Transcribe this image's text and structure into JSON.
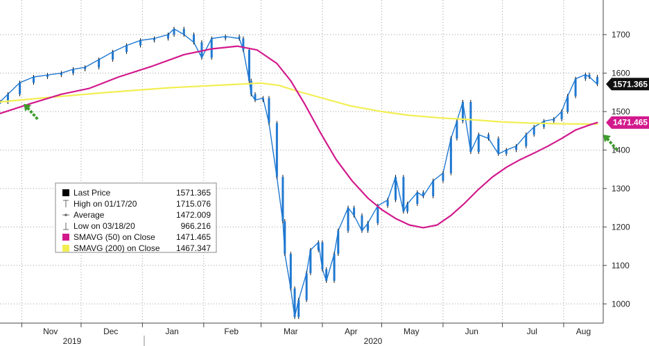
{
  "chart_data": {
    "type": "line",
    "title": "",
    "xlabel": "",
    "ylabel": "",
    "ylim": [
      950,
      1790
    ],
    "y_ticks": [
      1000,
      1100,
      1200,
      1300,
      1400,
      1500,
      1600,
      1700
    ],
    "grid": true,
    "legend_position": "bottom-left",
    "months": [
      "Nov",
      "Dec",
      "Jan",
      "Feb",
      "Mar",
      "Apr",
      "May",
      "Jun",
      "Jul",
      "Aug"
    ],
    "years": [
      "2019",
      "2020"
    ],
    "price_series": {
      "name": "Last Price",
      "color": "#1f78d1",
      "points": [
        [
          "2019-10-21",
          1525
        ],
        [
          "2019-10-25",
          1545
        ],
        [
          "2019-10-31",
          1575
        ],
        [
          "2019-11-07",
          1590
        ],
        [
          "2019-11-14",
          1595
        ],
        [
          "2019-11-21",
          1600
        ],
        [
          "2019-11-27",
          1610
        ],
        [
          "2019-12-03",
          1615
        ],
        [
          "2019-12-10",
          1635
        ],
        [
          "2019-12-17",
          1655
        ],
        [
          "2019-12-24",
          1672
        ],
        [
          "2019-12-31",
          1685
        ],
        [
          "2020-01-07",
          1690
        ],
        [
          "2020-01-14",
          1700
        ],
        [
          "2020-01-17",
          1715
        ],
        [
          "2020-01-22",
          1700
        ],
        [
          "2020-01-27",
          1680
        ],
        [
          "2020-01-31",
          1640
        ],
        [
          "2020-02-05",
          1690
        ],
        [
          "2020-02-12",
          1695
        ],
        [
          "2020-02-19",
          1690
        ],
        [
          "2020-02-21",
          1660
        ],
        [
          "2020-02-24",
          1580
        ],
        [
          "2020-02-25",
          1545
        ],
        [
          "2020-02-27",
          1530
        ],
        [
          "2020-03-02",
          1535
        ],
        [
          "2020-03-05",
          1470
        ],
        [
          "2020-03-09",
          1330
        ],
        [
          "2020-03-12",
          1215
        ],
        [
          "2020-03-13",
          1130
        ],
        [
          "2020-03-16",
          1040
        ],
        [
          "2020-03-18",
          966
        ],
        [
          "2020-03-20",
          1010
        ],
        [
          "2020-03-24",
          1080
        ],
        [
          "2020-03-26",
          1140
        ],
        [
          "2020-03-30",
          1160
        ],
        [
          "2020-04-01",
          1090
        ],
        [
          "2020-04-03",
          1060
        ],
        [
          "2020-04-07",
          1130
        ],
        [
          "2020-04-09",
          1190
        ],
        [
          "2020-04-14",
          1250
        ],
        [
          "2020-04-17",
          1230
        ],
        [
          "2020-04-21",
          1190
        ],
        [
          "2020-04-24",
          1210
        ],
        [
          "2020-04-29",
          1255
        ],
        [
          "2020-05-04",
          1270
        ],
        [
          "2020-05-08",
          1330
        ],
        [
          "2020-05-12",
          1240
        ],
        [
          "2020-05-14",
          1260
        ],
        [
          "2020-05-19",
          1290
        ],
        [
          "2020-05-22",
          1280
        ],
        [
          "2020-05-27",
          1320
        ],
        [
          "2020-06-01",
          1340
        ],
        [
          "2020-06-05",
          1430
        ],
        [
          "2020-06-08",
          1475
        ],
        [
          "2020-06-11",
          1525
        ],
        [
          "2020-06-15",
          1395
        ],
        [
          "2020-06-19",
          1440
        ],
        [
          "2020-06-24",
          1430
        ],
        [
          "2020-06-29",
          1390
        ],
        [
          "2020-07-03",
          1400
        ],
        [
          "2020-07-08",
          1410
        ],
        [
          "2020-07-13",
          1440
        ],
        [
          "2020-07-17",
          1460
        ],
        [
          "2020-07-22",
          1475
        ],
        [
          "2020-07-27",
          1480
        ],
        [
          "2020-07-31",
          1500
        ],
        [
          "2020-08-03",
          1540
        ],
        [
          "2020-08-07",
          1585
        ],
        [
          "2020-08-12",
          1596
        ],
        [
          "2020-08-14",
          1590
        ],
        [
          "2020-08-18",
          1571.365
        ]
      ]
    },
    "sma50_series": {
      "name": "SMAVG (50) on Close",
      "color": "#d2198c",
      "points": [
        [
          "2019-10-21",
          1495
        ],
        [
          "2019-11-05",
          1520
        ],
        [
          "2019-11-21",
          1545
        ],
        [
          "2019-12-05",
          1560
        ],
        [
          "2019-12-20",
          1590
        ],
        [
          "2020-01-06",
          1618
        ],
        [
          "2020-01-22",
          1648
        ],
        [
          "2020-02-05",
          1663
        ],
        [
          "2020-02-18",
          1670
        ],
        [
          "2020-02-28",
          1660
        ],
        [
          "2020-03-09",
          1625
        ],
        [
          "2020-03-16",
          1580
        ],
        [
          "2020-03-23",
          1520
        ],
        [
          "2020-03-31",
          1445
        ],
        [
          "2020-04-08",
          1375
        ],
        [
          "2020-04-16",
          1320
        ],
        [
          "2020-04-24",
          1275
        ],
        [
          "2020-05-01",
          1245
        ],
        [
          "2020-05-08",
          1222
        ],
        [
          "2020-05-15",
          1205
        ],
        [
          "2020-05-22",
          1198
        ],
        [
          "2020-05-29",
          1205
        ],
        [
          "2020-06-05",
          1230
        ],
        [
          "2020-06-12",
          1262
        ],
        [
          "2020-06-19",
          1298
        ],
        [
          "2020-06-26",
          1330
        ],
        [
          "2020-07-03",
          1355
        ],
        [
          "2020-07-10",
          1375
        ],
        [
          "2020-07-17",
          1392
        ],
        [
          "2020-07-24",
          1410
        ],
        [
          "2020-07-31",
          1430
        ],
        [
          "2020-08-07",
          1452
        ],
        [
          "2020-08-14",
          1465
        ],
        [
          "2020-08-18",
          1471.465
        ]
      ]
    },
    "sma200_series": {
      "name": "SMAVG (200) on Close",
      "color": "#f2ee52",
      "points": [
        [
          "2019-10-21",
          1525
        ],
        [
          "2019-11-15",
          1537
        ],
        [
          "2019-12-15",
          1550
        ],
        [
          "2020-01-15",
          1562
        ],
        [
          "2020-02-15",
          1570
        ],
        [
          "2020-03-01",
          1574
        ],
        [
          "2020-03-10",
          1568
        ],
        [
          "2020-03-20",
          1552
        ],
        [
          "2020-04-01",
          1535
        ],
        [
          "2020-04-15",
          1515
        ],
        [
          "2020-05-01",
          1500
        ],
        [
          "2020-05-15",
          1490
        ],
        [
          "2020-06-01",
          1483
        ],
        [
          "2020-06-15",
          1479
        ],
        [
          "2020-07-01",
          1473
        ],
        [
          "2020-07-15",
          1470
        ],
        [
          "2020-08-01",
          1468
        ],
        [
          "2020-08-18",
          1467.347
        ]
      ]
    },
    "price_tag": {
      "label": "1571.365",
      "value": 1571.365,
      "bg": "#111111",
      "fg": "#ffffff"
    },
    "sma50_tag": {
      "label": "1471.465",
      "value": 1471.465,
      "bg": "#d2198c",
      "fg": "#ffffff"
    },
    "arrow_color": "#3e9b2d",
    "arrows": [
      {
        "at_date": "2019-11-02",
        "at_value": 1520,
        "direction": "down-right"
      },
      {
        "at_date": "2020-08-21",
        "at_value": 1440,
        "direction": "down-right"
      }
    ],
    "legend": [
      {
        "marker": "square-black",
        "label": "Last Price",
        "value": "1571.365"
      },
      {
        "marker": "high-marker",
        "label": "High on 01/17/20",
        "value": "1715.076"
      },
      {
        "marker": "average-marker",
        "label": "Average",
        "value": "1472.009"
      },
      {
        "marker": "low-marker",
        "label": "Low on 03/18/20",
        "value": "966.216"
      },
      {
        "marker": "square-magenta",
        "label": "SMAVG (50)  on Close",
        "value": "1471.465"
      },
      {
        "marker": "square-yellow",
        "label": "SMAVG (200)  on Close",
        "value": "1467.347"
      }
    ]
  }
}
